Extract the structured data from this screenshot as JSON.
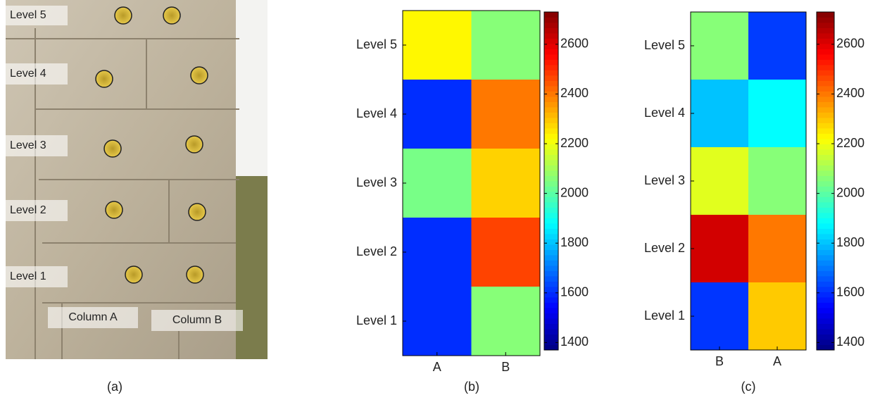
{
  "photo": {
    "levels": [
      "Level 5",
      "Level 4",
      "Level 3",
      "Level 2",
      "Level 1"
    ],
    "columns": [
      "Column A",
      "Column B"
    ],
    "caption": "(a)"
  },
  "chart_data": [
    {
      "type": "heatmap",
      "caption": "(b)",
      "colormap": "jet",
      "rows": [
        "Level 5",
        "Level 4",
        "Level 3",
        "Level 2",
        "Level 1"
      ],
      "categories": [
        "A",
        "B"
      ],
      "values": [
        [
          2230,
          2060
        ],
        [
          1600,
          2400
        ],
        [
          2040,
          2280
        ],
        [
          1600,
          2470
        ],
        [
          1600,
          2060
        ]
      ],
      "clim": [
        1370,
        2730
      ],
      "cticks": [
        1400,
        1600,
        1800,
        2000,
        2200,
        2400,
        2600
      ]
    },
    {
      "type": "heatmap",
      "caption": "(c)",
      "colormap": "jet",
      "rows": [
        "Level 5",
        "Level 4",
        "Level 3",
        "Level 2",
        "Level 1"
      ],
      "categories": [
        "B",
        "A"
      ],
      "values": [
        [
          2060,
          1620
        ],
        [
          1800,
          1880
        ],
        [
          2180,
          2060
        ],
        [
          2620,
          2400
        ],
        [
          1610,
          2290
        ]
      ],
      "clim": [
        1370,
        2730
      ],
      "cticks": [
        1400,
        1600,
        1800,
        2000,
        2200,
        2400,
        2600
      ]
    }
  ]
}
